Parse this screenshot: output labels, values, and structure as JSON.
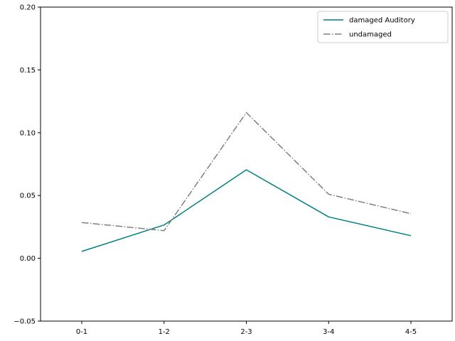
{
  "chart_data": {
    "type": "line",
    "title": "",
    "xlabel": "",
    "ylabel": "",
    "categories": [
      "0-1",
      "1-2",
      "2-3",
      "3-4",
      "4-5"
    ],
    "ylim": [
      -0.05,
      0.2
    ],
    "yticks": [
      -0.05,
      0.0,
      0.05,
      0.1,
      0.15,
      0.2
    ],
    "ytick_labels": [
      "−0.05",
      "0.00",
      "0.05",
      "0.10",
      "0.15",
      "0.20"
    ],
    "grid": false,
    "legend_position": "top-right",
    "series": [
      {
        "name": "damaged Auditory",
        "values": [
          0.0055,
          0.0265,
          0.0705,
          0.033,
          0.018
        ],
        "color": "#008080",
        "style": "solid"
      },
      {
        "name": "undamaged",
        "values": [
          0.0285,
          0.022,
          0.116,
          0.051,
          0.0355
        ],
        "color": "#808080",
        "style": "dashdot"
      }
    ]
  }
}
